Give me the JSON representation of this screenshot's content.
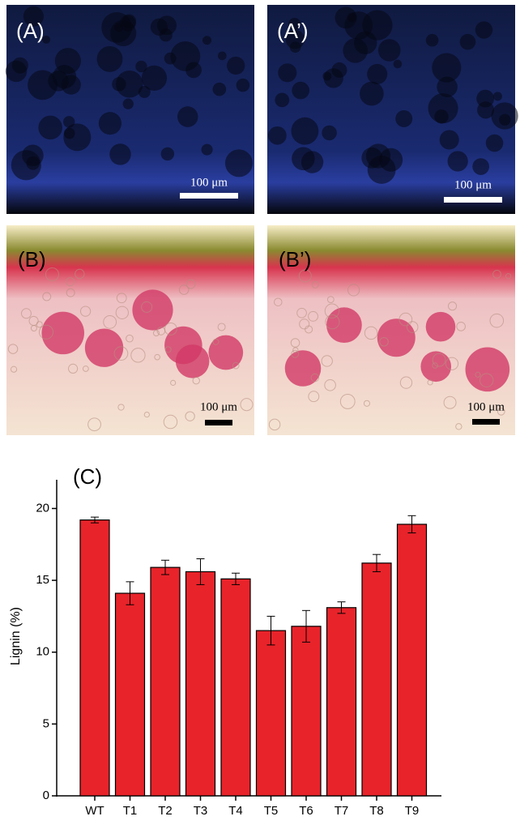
{
  "panels": [
    {
      "label": "(A)",
      "scale_bar": "100 μm"
    },
    {
      "label": "(A’)",
      "scale_bar": "100 μm"
    },
    {
      "label": "(B)",
      "scale_bar": "100 μm"
    },
    {
      "label": "(B’)",
      "scale_bar": "100 μm"
    }
  ],
  "chart_data": {
    "type": "bar",
    "title": "(C)",
    "y_label": "Lignin (%)",
    "categories": [
      "WT",
      "T1",
      "T2",
      "T3",
      "T4",
      "T5",
      "T6",
      "T7",
      "T8",
      "T9"
    ],
    "values": [
      19.2,
      14.1,
      15.9,
      15.6,
      15.1,
      11.5,
      11.8,
      13.1,
      16.2,
      18.9
    ],
    "errors": [
      0.2,
      0.8,
      0.5,
      0.9,
      0.4,
      1.0,
      1.1,
      0.4,
      0.6,
      0.6
    ],
    "color": "#e8232a",
    "ylim": [
      0,
      22
    ],
    "yticks": [
      0,
      5,
      10,
      15,
      20
    ]
  }
}
